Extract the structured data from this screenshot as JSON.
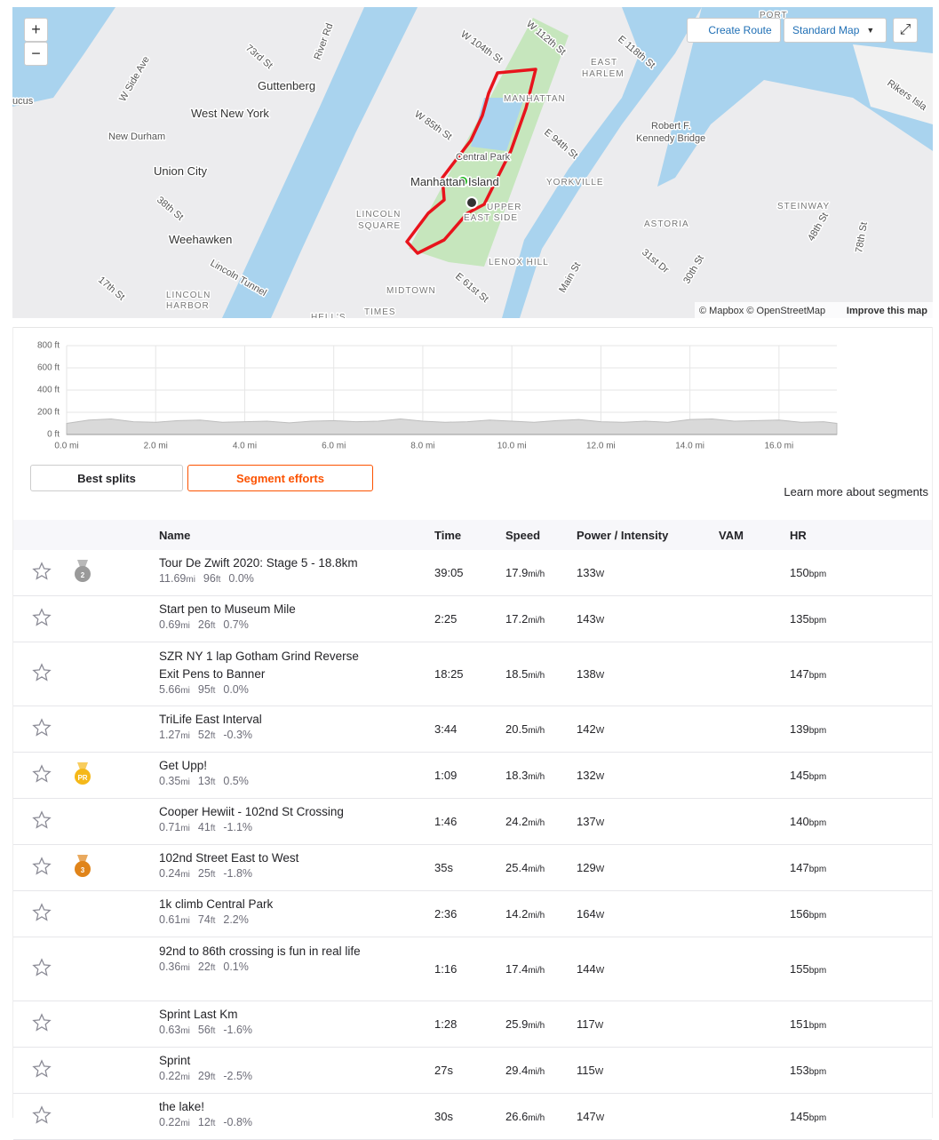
{
  "map": {
    "zoom_in": "+",
    "zoom_out": "−",
    "create_route": "Create Route",
    "map_style": "Standard Map",
    "labels": [
      "ucus",
      "Guttenberg",
      "West New York",
      "New Durham",
      "Union City",
      "Weehawken",
      "Lincoln Tunnel",
      "LINCOLN",
      "HARBOR",
      "W Side Ave",
      "73rd St",
      "River Rd",
      "38th St",
      "17th St",
      "W 104th St",
      "W 112th St",
      "E 118th St",
      "EAST",
      "HARLEM",
      "MANHATTAN",
      "W 85th St",
      "E 94th St",
      "Central Park",
      "Manhattan Island",
      "UPPER",
      "EAST SIDE",
      "LINCOLN",
      "SQUARE",
      "YORKVILLE",
      "LENOX HILL",
      "E 61st St",
      "MIDTOWN",
      "TIMES",
      "HELL'S",
      "Robert F.",
      "Kennedy Bridge",
      "ASTORIA",
      "STEINWAY",
      "31st Dr",
      "30th St",
      "48th St",
      "78th St",
      "Main St",
      "Rikers Isla",
      "PORT"
    ],
    "attribution": "© Mapbox © OpenStreetMap",
    "improve": "Improve this map"
  },
  "chart_data": {
    "type": "area",
    "color": "#d9d9d9",
    "line_color": "#bdbdbd",
    "grid": true,
    "x": [
      0,
      0.5,
      1,
      1.5,
      2,
      2.5,
      3,
      3.5,
      4,
      4.5,
      5,
      5.5,
      6,
      6.5,
      7,
      7.5,
      8,
      8.5,
      9,
      9.5,
      10,
      10.5,
      11,
      11.5,
      12,
      12.5,
      13,
      13.5,
      14,
      14.5,
      15,
      15.5,
      16,
      16.5,
      17,
      17.3
    ],
    "values": [
      100,
      130,
      140,
      115,
      110,
      125,
      130,
      110,
      115,
      120,
      105,
      120,
      125,
      115,
      120,
      140,
      120,
      110,
      115,
      130,
      120,
      110,
      125,
      135,
      115,
      110,
      120,
      110,
      135,
      140,
      120,
      125,
      130,
      110,
      115,
      100
    ],
    "xlim": [
      0,
      17.3
    ],
    "xticks": [
      {
        "value": 0,
        "label": "0.0 mi"
      },
      {
        "value": 2,
        "label": "2.0 mi"
      },
      {
        "value": 4,
        "label": "4.0 mi"
      },
      {
        "value": 6,
        "label": "6.0 mi"
      },
      {
        "value": 8,
        "label": "8.0 mi"
      },
      {
        "value": 10,
        "label": "10.0 mi"
      },
      {
        "value": 12,
        "label": "12.0 mi"
      },
      {
        "value": 14,
        "label": "14.0 mi"
      },
      {
        "value": 16,
        "label": "16.0 mi"
      }
    ],
    "ylim": [
      0,
      800
    ],
    "yticks": [
      {
        "value": 0,
        "label": "0 ft"
      },
      {
        "value": 200,
        "label": "200 ft"
      },
      {
        "value": 400,
        "label": "400 ft"
      },
      {
        "value": 600,
        "label": "600 ft"
      },
      {
        "value": 800,
        "label": "800 ft"
      }
    ]
  },
  "tabs": [
    "Best splits",
    "Segment efforts"
  ],
  "learn_more": "Learn more about segments",
  "table": {
    "headers": [
      "Name",
      "Time",
      "Speed",
      "Power / Intensity",
      "VAM",
      "HR"
    ],
    "units": {
      "distance": "mi",
      "elevation": "ft",
      "speed": "mi/h",
      "power": "W",
      "hr": "bpm"
    },
    "rows": [
      {
        "name": "Tour De Zwift 2020: Stage 5 - 18.8km",
        "distance": "11.69",
        "elevation": "96",
        "grade": "0.0%",
        "time": "39:05",
        "speed": "17.9",
        "power": "133",
        "hr": "150",
        "medal": {
          "label": "2",
          "color": "#9a9a9a"
        }
      },
      {
        "name": "Start pen to Museum Mile",
        "distance": "0.69",
        "elevation": "26",
        "grade": "0.7%",
        "time": "2:25",
        "speed": "17.2",
        "power": "143",
        "hr": "135",
        "medal": null
      },
      {
        "name": "SZR NY 1 lap Gotham Grind Reverse Exit Pens to Banner",
        "distance": "5.66",
        "elevation": "95",
        "grade": "0.0%",
        "time": "18:25",
        "speed": "18.5",
        "power": "138",
        "hr": "147",
        "medal": null
      },
      {
        "name": "TriLife East Interval",
        "distance": "1.27",
        "elevation": "52",
        "grade": "-0.3%",
        "time": "3:44",
        "speed": "20.5",
        "power": "142",
        "hr": "139",
        "medal": null
      },
      {
        "name": "Get Upp!",
        "distance": "0.35",
        "elevation": "13",
        "grade": "0.5%",
        "time": "1:09",
        "speed": "18.3",
        "power": "132",
        "hr": "145",
        "medal": {
          "label": "PR",
          "color": "#f5b819"
        }
      },
      {
        "name": "Cooper Hewiit - 102nd St Crossing",
        "distance": "0.71",
        "elevation": "41",
        "grade": "-1.1%",
        "time": "1:46",
        "speed": "24.2",
        "power": "137",
        "hr": "140",
        "medal": null
      },
      {
        "name": "102nd Street East to West",
        "distance": "0.24",
        "elevation": "25",
        "grade": "-1.8%",
        "time": "35s",
        "speed": "25.4",
        "power": "129",
        "hr": "147",
        "medal": {
          "label": "3",
          "color": "#e0841a"
        }
      },
      {
        "name": "1k climb Central Park",
        "distance": "0.61",
        "elevation": "74",
        "grade": "2.2%",
        "time": "2:36",
        "speed": "14.2",
        "power": "164",
        "hr": "156",
        "medal": null
      },
      {
        "name": "92nd to 86th crossing is fun in real life",
        "distance": "0.36",
        "elevation": "22",
        "grade": "0.1%",
        "time": "1:16",
        "speed": "17.4",
        "power": "144",
        "hr": "155",
        "medal": null
      },
      {
        "name": "Sprint Last Km",
        "distance": "0.63",
        "elevation": "56",
        "grade": "-1.6%",
        "time": "1:28",
        "speed": "25.9",
        "power": "117",
        "hr": "151",
        "medal": null
      },
      {
        "name": "Sprint",
        "distance": "0.22",
        "elevation": "29",
        "grade": "-2.5%",
        "time": "27s",
        "speed": "29.4",
        "power": "115",
        "hr": "153",
        "medal": null
      },
      {
        "name": "the lake!",
        "distance": "0.22",
        "elevation": "12",
        "grade": "-0.8%",
        "time": "30s",
        "speed": "26.6",
        "power": "147",
        "hr": "145",
        "medal": null
      }
    ]
  }
}
